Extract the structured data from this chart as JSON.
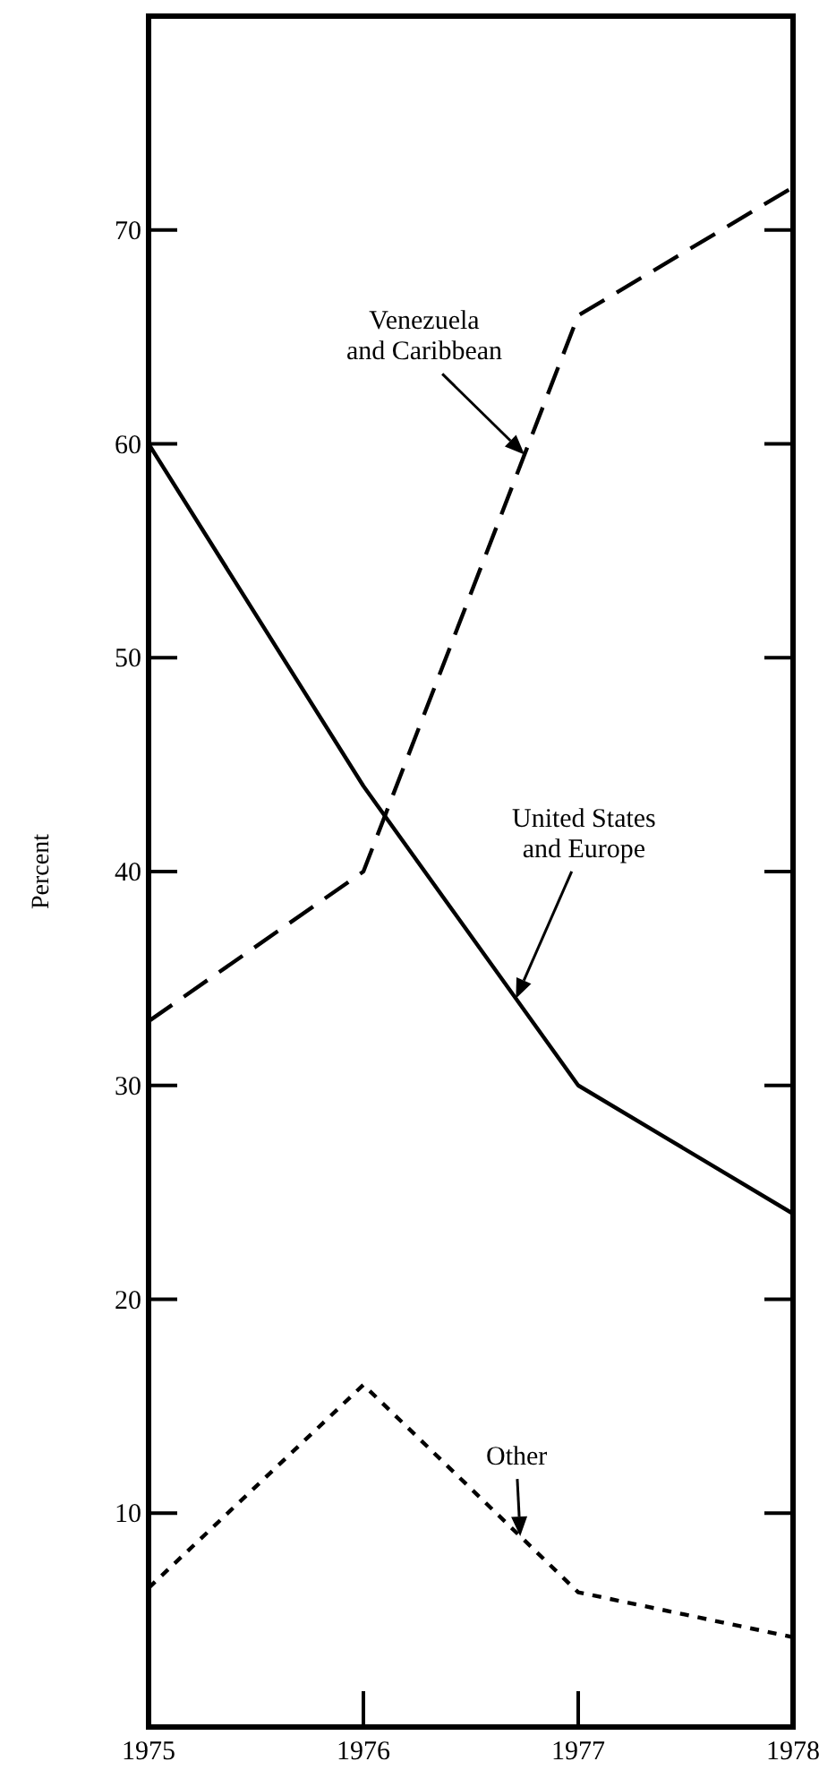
{
  "chart_data": {
    "type": "line",
    "ylabel": "Percent",
    "x": [
      1975,
      1976,
      1977,
      1978
    ],
    "xlim": [
      1975,
      1978
    ],
    "xticks": [
      1975,
      1976,
      1977,
      1978
    ],
    "ylim": [
      0,
      80
    ],
    "yticks": [
      10,
      20,
      30,
      40,
      50,
      60,
      70
    ],
    "grid": false,
    "legend": false,
    "marker": "none",
    "series": [
      {
        "name": "Venezuela and Caribbean",
        "color": "#000000",
        "line_style": "dashed",
        "values": [
          33,
          40,
          66,
          72
        ]
      },
      {
        "name": "United States and Europe",
        "color": "#000000",
        "line_style": "solid",
        "values": [
          60,
          44,
          30,
          24
        ]
      },
      {
        "name": "Other",
        "color": "#000000",
        "line_style": "dotted",
        "values": [
          6.5,
          16,
          6.3,
          4.2
        ]
      }
    ]
  }
}
